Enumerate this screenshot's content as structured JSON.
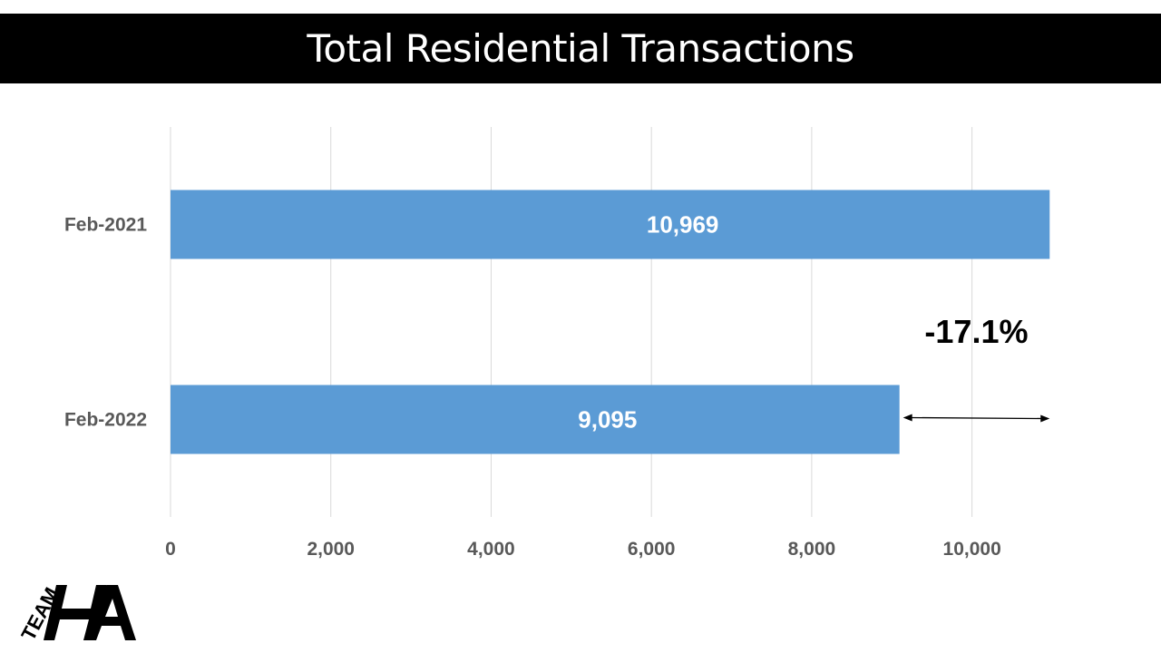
{
  "header": {
    "title": "Total Residential Transactions"
  },
  "chart_data": {
    "type": "bar",
    "orientation": "horizontal",
    "title": "Total Residential Transactions",
    "categories": [
      "Feb-2021",
      "Feb-2022"
    ],
    "values": [
      10969,
      9095
    ],
    "data_labels": [
      "10,969",
      "9,095"
    ],
    "xlim": [
      0,
      11000
    ],
    "x_ticks": [
      0,
      2000,
      4000,
      6000,
      8000,
      10000
    ],
    "x_tick_labels": [
      "0",
      "2,000",
      "4,000",
      "6,000",
      "8,000",
      "10,000"
    ],
    "grid": "vertical",
    "bar_color": "#5B9BD5",
    "annotation": {
      "text": "-17.1%",
      "from_value": 9095,
      "to_value": 10969
    }
  },
  "logo": {
    "text": "TEAM HA"
  }
}
